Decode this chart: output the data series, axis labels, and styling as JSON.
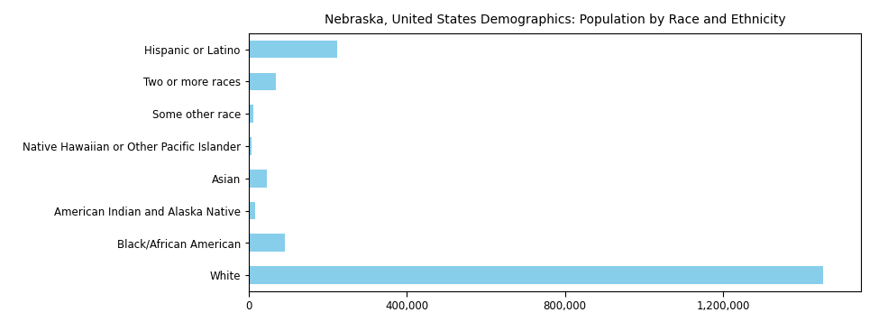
{
  "title": "Nebraska, United States Demographics: Population by Race and Ethnicity",
  "categories": [
    "White",
    "Black/African American",
    "American Indian and Alaska Native",
    "Asian",
    "Native Hawaiian or Other Pacific Islander",
    "Some other race",
    "Two or more races",
    "Hispanic or Latino"
  ],
  "values": [
    1453000,
    92000,
    17000,
    47000,
    7000,
    11000,
    68000,
    224000
  ],
  "bar_color": "#87CEEB",
  "background_color": "#ffffff",
  "xlim": [
    0,
    1550000
  ],
  "xticks": [
    0,
    400000,
    800000,
    1200000
  ],
  "title_fontsize": 10,
  "label_fontsize": 8.5,
  "tick_fontsize": 8.5
}
